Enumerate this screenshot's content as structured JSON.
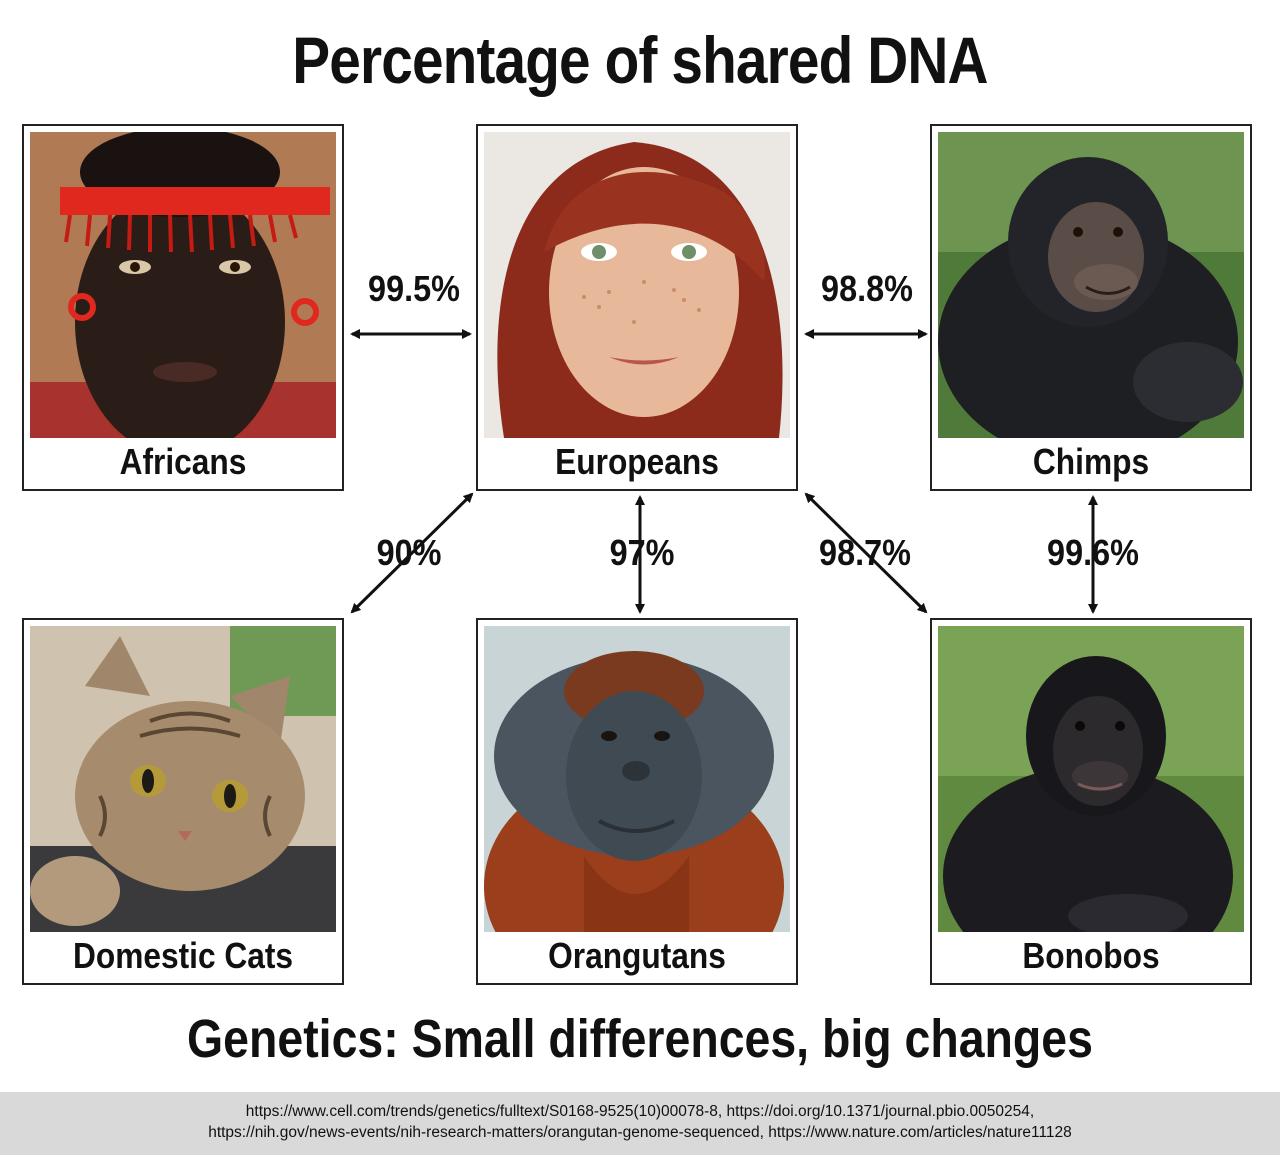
{
  "title": "Percentage of shared DNA",
  "subtitle": "Genetics: Small differences, big changes",
  "cards": {
    "africans": {
      "label": "Africans",
      "icon": "african-woman-portrait"
    },
    "europeans": {
      "label": "Europeans",
      "icon": "european-woman-portrait"
    },
    "chimps": {
      "label": "Chimps",
      "icon": "chimpanzee-portrait"
    },
    "cats": {
      "label": "Domestic Cats",
      "icon": "tabby-cat-portrait"
    },
    "orangutans": {
      "label": "Orangutans",
      "icon": "orangutan-portrait"
    },
    "bonobos": {
      "label": "Bonobos",
      "icon": "bonobo-portrait"
    }
  },
  "links": {
    "africans_europeans": "99.5%",
    "europeans_chimps": "98.8%",
    "cats_europeans": "90%",
    "orangutans_europeans": "97%",
    "bonobos_europeans": "98.7%",
    "chimps_bonobos": "99.6%"
  },
  "sources": {
    "line1": "https://www.cell.com/trends/genetics/fulltext/S0168-9525(10)00078-8, https://doi.org/10.1371/journal.pbio.0050254,",
    "line2": "https://nih.gov/news-events/nih-research-matters/orangutan-genome-sequenced, https://www.nature.com/articles/nature11128"
  }
}
